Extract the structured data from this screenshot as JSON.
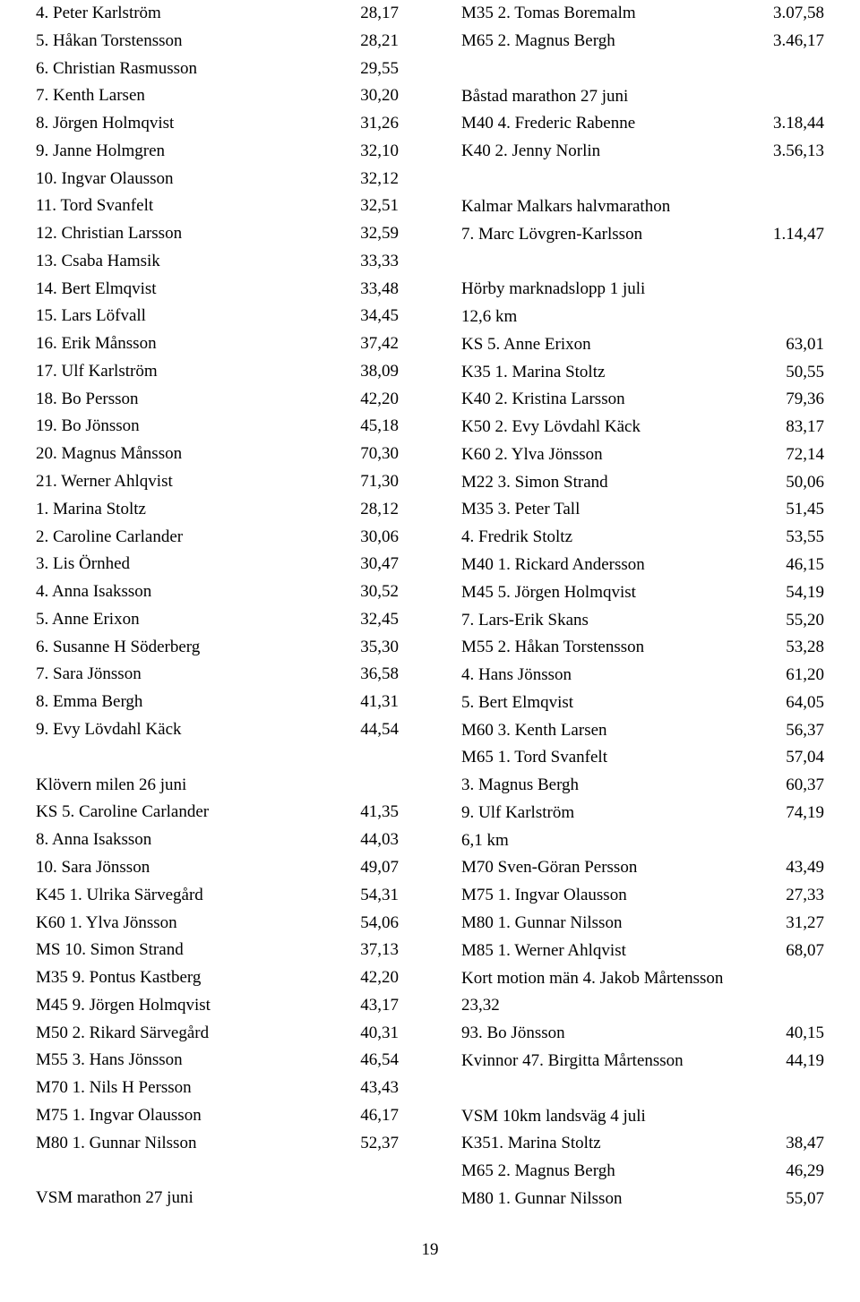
{
  "typography": {
    "font_family": "Georgia, serif",
    "font_size_pt": 14,
    "line_height": 1.62,
    "text_color": "#000000",
    "bg_color": "#ffffff"
  },
  "left": {
    "block1": [
      {
        "l": "4. Peter Karlström",
        "v": "28,17"
      },
      {
        "l": "5. Håkan Torstensson",
        "v": "28,21"
      },
      {
        "l": "6. Christian Rasmusson",
        "v": "29,55"
      },
      {
        "l": "7. Kenth Larsen",
        "v": "30,20"
      },
      {
        "l": "8. Jörgen Holmqvist",
        "v": "31,26"
      },
      {
        "l": "9. Janne Holmgren",
        "v": "32,10"
      },
      {
        "l": "10. Ingvar Olausson",
        "v": "32,12"
      },
      {
        "l": "11. Tord Svanfelt",
        "v": "32,51"
      },
      {
        "l": "12. Christian Larsson",
        "v": "32,59"
      },
      {
        "l": "13. Csaba Hamsik",
        "v": "33,33"
      },
      {
        "l": "14. Bert Elmqvist",
        "v": "33,48"
      },
      {
        "l": "15. Lars Löfvall",
        "v": "34,45"
      },
      {
        "l": "16. Erik Månsson",
        "v": "37,42"
      },
      {
        "l": "17. Ulf Karlström",
        "v": "38,09"
      },
      {
        "l": "18. Bo Persson",
        "v": "42,20"
      },
      {
        "l": "19. Bo Jönsson",
        "v": "45,18"
      },
      {
        "l": "20. Magnus Månsson",
        "v": "70,30"
      },
      {
        "l": "21. Werner Ahlqvist",
        "v": "71,30"
      },
      {
        "l": "1. Marina Stoltz",
        "v": "28,12"
      },
      {
        "l": "2. Caroline Carlander",
        "v": "30,06"
      },
      {
        "l": "3. Lis Örnhed",
        "v": "30,47"
      },
      {
        "l": "4. Anna Isaksson",
        "v": "30,52"
      },
      {
        "l": "5. Anne Erixon",
        "v": "32,45"
      },
      {
        "l": "6. Susanne H Söderberg",
        "v": "35,30"
      },
      {
        "l": "7. Sara Jönsson",
        "v": "36,58"
      },
      {
        "l": "8. Emma Bergh",
        "v": "41,31"
      },
      {
        "l": "9. Evy Lövdahl Käck",
        "v": "44,54"
      }
    ],
    "h2": "Klövern milen 26 juni",
    "block2": [
      {
        "l": "KS 5. Caroline Carlander",
        "v": "41,35"
      },
      {
        "l": "8. Anna Isaksson",
        "v": "44,03"
      },
      {
        "l": "10. Sara Jönsson",
        "v": "49,07"
      },
      {
        "l": "K45 1. Ulrika Särvegård",
        "v": "54,31"
      },
      {
        "l": "K60 1. Ylva Jönsson",
        "v": "54,06"
      },
      {
        "l": "MS 10. Simon Strand",
        "v": "37,13"
      },
      {
        "l": "M35 9. Pontus Kastberg",
        "v": "42,20"
      },
      {
        "l": "M45 9. Jörgen Holmqvist",
        "v": "43,17"
      },
      {
        "l": "M50 2. Rikard Särvegård",
        "v": "40,31"
      },
      {
        "l": "M55 3. Hans Jönsson",
        "v": "46,54"
      },
      {
        "l": "M70 1. Nils H Persson",
        "v": "43,43"
      },
      {
        "l": "M75 1. Ingvar Olausson",
        "v": "46,17"
      },
      {
        "l": "M80 1. Gunnar Nilsson",
        "v": "52,37"
      }
    ],
    "h3": "VSM marathon 27 juni"
  },
  "right": {
    "block1": [
      {
        "l": "M35 2. Tomas Boremalm",
        "v": "3.07,58"
      },
      {
        "l": "M65 2. Magnus Bergh",
        "v": "3.46,17"
      }
    ],
    "h2": "Båstad marathon 27 juni",
    "block2": [
      {
        "l": "M40 4. Frederic Rabenne",
        "v": "3.18,44"
      },
      {
        "l": "K40 2. Jenny Norlin",
        "v": "3.56,13"
      }
    ],
    "h3": "Kalmar Malkars halvmarathon",
    "block3": [
      {
        "l": "7. Marc Lövgren-Karlsson",
        "v": "1.14,47"
      }
    ],
    "h4": "Hörby marknadslopp 1 juli",
    "h4b": "12,6 km",
    "block4": [
      {
        "l": "KS 5. Anne Erixon",
        "v": "63,01"
      },
      {
        "l": "K35 1. Marina Stoltz",
        "v": "50,55"
      },
      {
        "l": "K40 2. Kristina Larsson",
        "v": "79,36"
      },
      {
        "l": "K50 2. Evy Lövdahl Käck",
        "v": "83,17"
      },
      {
        "l": "K60 2. Ylva Jönsson",
        "v": "72,14"
      },
      {
        "l": "M22 3. Simon Strand",
        "v": "50,06"
      },
      {
        "l": "M35 3. Peter Tall",
        "v": "51,45"
      },
      {
        "l": "4. Fredrik Stoltz",
        "v": "53,55"
      },
      {
        "l": "M40 1. Rickard Andersson",
        "v": "46,15"
      },
      {
        "l": "M45 5. Jörgen Holmqvist",
        "v": "54,19"
      },
      {
        "l": "7. Lars-Erik Skans",
        "v": "55,20"
      },
      {
        "l": "M55 2. Håkan Torstensson",
        "v": "53,28"
      },
      {
        "l": "4. Hans Jönsson",
        "v": "61,20"
      },
      {
        "l": "5. Bert Elmqvist",
        "v": "64,05"
      },
      {
        "l": "M60 3. Kenth Larsen",
        "v": "56,37"
      },
      {
        "l": "M65 1. Tord Svanfelt",
        "v": "57,04"
      },
      {
        "l": "3. Magnus Bergh",
        "v": "60,37"
      },
      {
        "l": "9. Ulf Karlström",
        "v": "74,19"
      }
    ],
    "h4c": "6,1 km",
    "block5": [
      {
        "l": "M70 Sven-Göran Persson",
        "v": "43,49"
      },
      {
        "l": "M75 1. Ingvar Olausson",
        "v": "27,33"
      },
      {
        "l": "M80 1. Gunnar Nilsson",
        "v": "31,27"
      },
      {
        "l": "M85 1. Werner Ahlqvist",
        "v": "68,07"
      }
    ],
    "freeline1": "Kort motion män 4. Jakob Mårtensson",
    "freeline2": "23,32",
    "block6": [
      {
        "l": "93. Bo Jönsson",
        "v": "40,15"
      },
      {
        "l": "Kvinnor 47. Birgitta Mårtensson",
        "v": "44,19"
      }
    ],
    "h5": "VSM 10km landsväg 4 juli",
    "block7": [
      {
        "l": "K351. Marina Stoltz",
        "v": "38,47"
      },
      {
        "l": "M65 2. Magnus Bergh",
        "v": "46,29"
      },
      {
        "l": "M80 1. Gunnar Nilsson",
        "v": "55,07"
      }
    ]
  },
  "page_number": "19"
}
